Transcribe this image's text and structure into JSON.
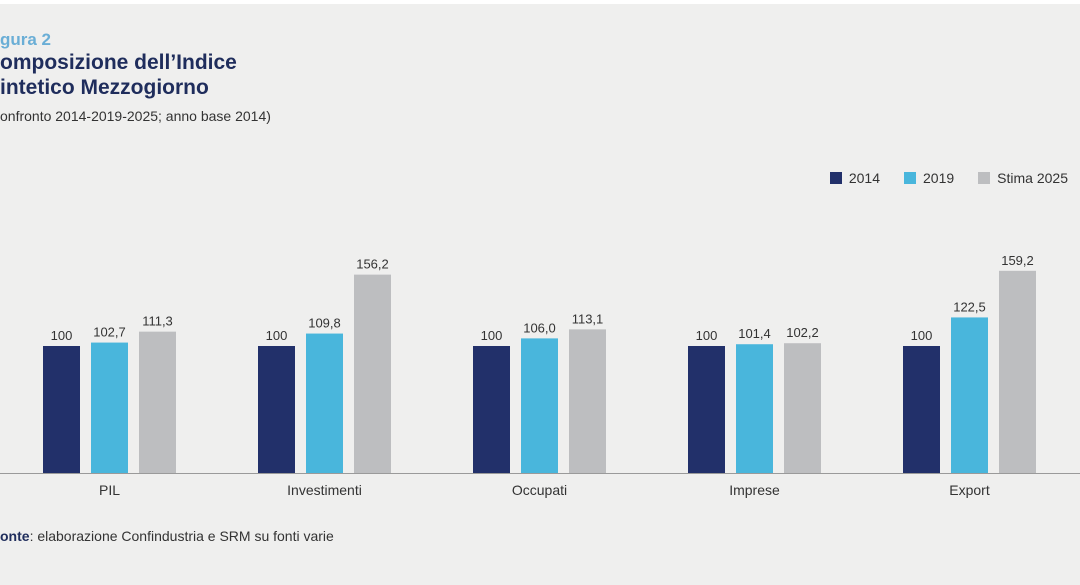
{
  "header": {
    "figure_label": "gura 2",
    "title": "omposizione dell’Indice intetico Mezzogiorno",
    "subtitle": "onfronto 2014-2019-2025; anno base 2014)"
  },
  "source": {
    "prefix": "onte",
    "text": ": elaborazione Confindustria e SRM su fonti varie"
  },
  "colors": {
    "s2014": "#22306a",
    "s2019": "#49b6dc",
    "s2025": "#bdbec0",
    "axis": "#9a9a9a",
    "label": "#333333"
  },
  "chart_data": {
    "type": "bar",
    "categories": [
      "PIL",
      "Investimenti",
      "Occupati",
      "Imprese",
      "Export"
    ],
    "series": [
      {
        "name": "2014",
        "color": "#22306a",
        "values": [
          100,
          100,
          100,
          100,
          100
        ],
        "labels": [
          "100",
          "100",
          "100",
          "100",
          "100"
        ]
      },
      {
        "name": "2019",
        "color": "#49b6dc",
        "values": [
          102.7,
          109.8,
          106.0,
          101.4,
          122.5
        ],
        "labels": [
          "102,7",
          "109,8",
          "106,0",
          "101,4",
          "122,5"
        ]
      },
      {
        "name": "Stima 2025",
        "color": "#bdbec0",
        "values": [
          111.3,
          156.2,
          113.1,
          102.2,
          159.2
        ],
        "labels": [
          "111,3",
          "156,2",
          "113,1",
          "102,2",
          "159,2"
        ]
      }
    ],
    "ylim": [
      0,
      200
    ],
    "legend_position": "top-right",
    "grid": false
  }
}
